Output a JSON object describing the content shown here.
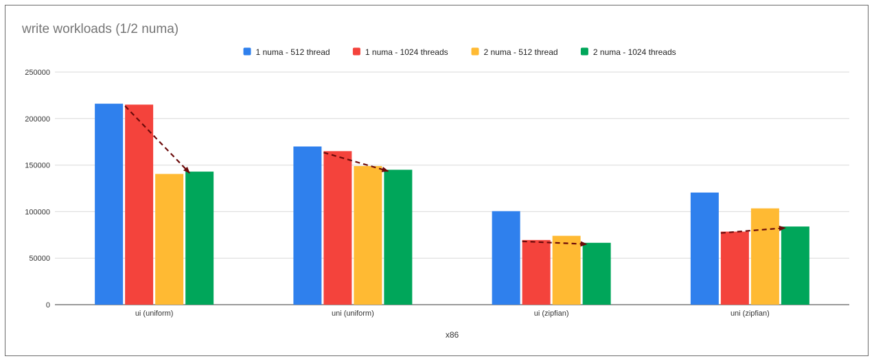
{
  "chart_data": {
    "type": "bar",
    "title": "write workloads (1/2 numa)",
    "xlabel": "x86",
    "ylabel": "",
    "ylim": [
      0,
      250000
    ],
    "yticks": [
      "0",
      "50000",
      "100000",
      "150000",
      "200000",
      "250000"
    ],
    "categories": [
      "ui (uniform)",
      "uni (uniform)",
      "ui (zipfian)",
      "uni (zipfian)"
    ],
    "series": [
      {
        "name": "1 numa - 512 thread",
        "color": "#2f80ed",
        "values": [
          216000,
          170000,
          100500,
          120500
        ]
      },
      {
        "name": "1 numa - 1024 threads",
        "color": "#f4433c",
        "values": [
          215000,
          165000,
          69500,
          78500
        ]
      },
      {
        "name": "2 numa - 512 thread",
        "color": "#ffba33",
        "values": [
          140500,
          149000,
          74000,
          103500
        ]
      },
      {
        "name": "2 numa - 1024 threads",
        "color": "#00a65a",
        "values": [
          143000,
          145000,
          66500,
          84000
        ]
      }
    ],
    "grid": true,
    "legend_position": "top-center",
    "annotations": [
      {
        "type": "dashed-arrow",
        "color": "#6b0a0a",
        "category": "ui (uniform)",
        "from_series": 1,
        "to_series": 3
      },
      {
        "type": "dashed-arrow",
        "color": "#6b0a0a",
        "category": "uni (uniform)",
        "from_series": 1,
        "to_series": 3
      },
      {
        "type": "dashed-arrow",
        "color": "#6b0a0a",
        "category": "ui (zipfian)",
        "from_series": 1,
        "to_series": 3
      },
      {
        "type": "dashed-arrow",
        "color": "#6b0a0a",
        "category": "uni (zipfian)",
        "from_series": 1,
        "to_series": 3
      }
    ]
  }
}
